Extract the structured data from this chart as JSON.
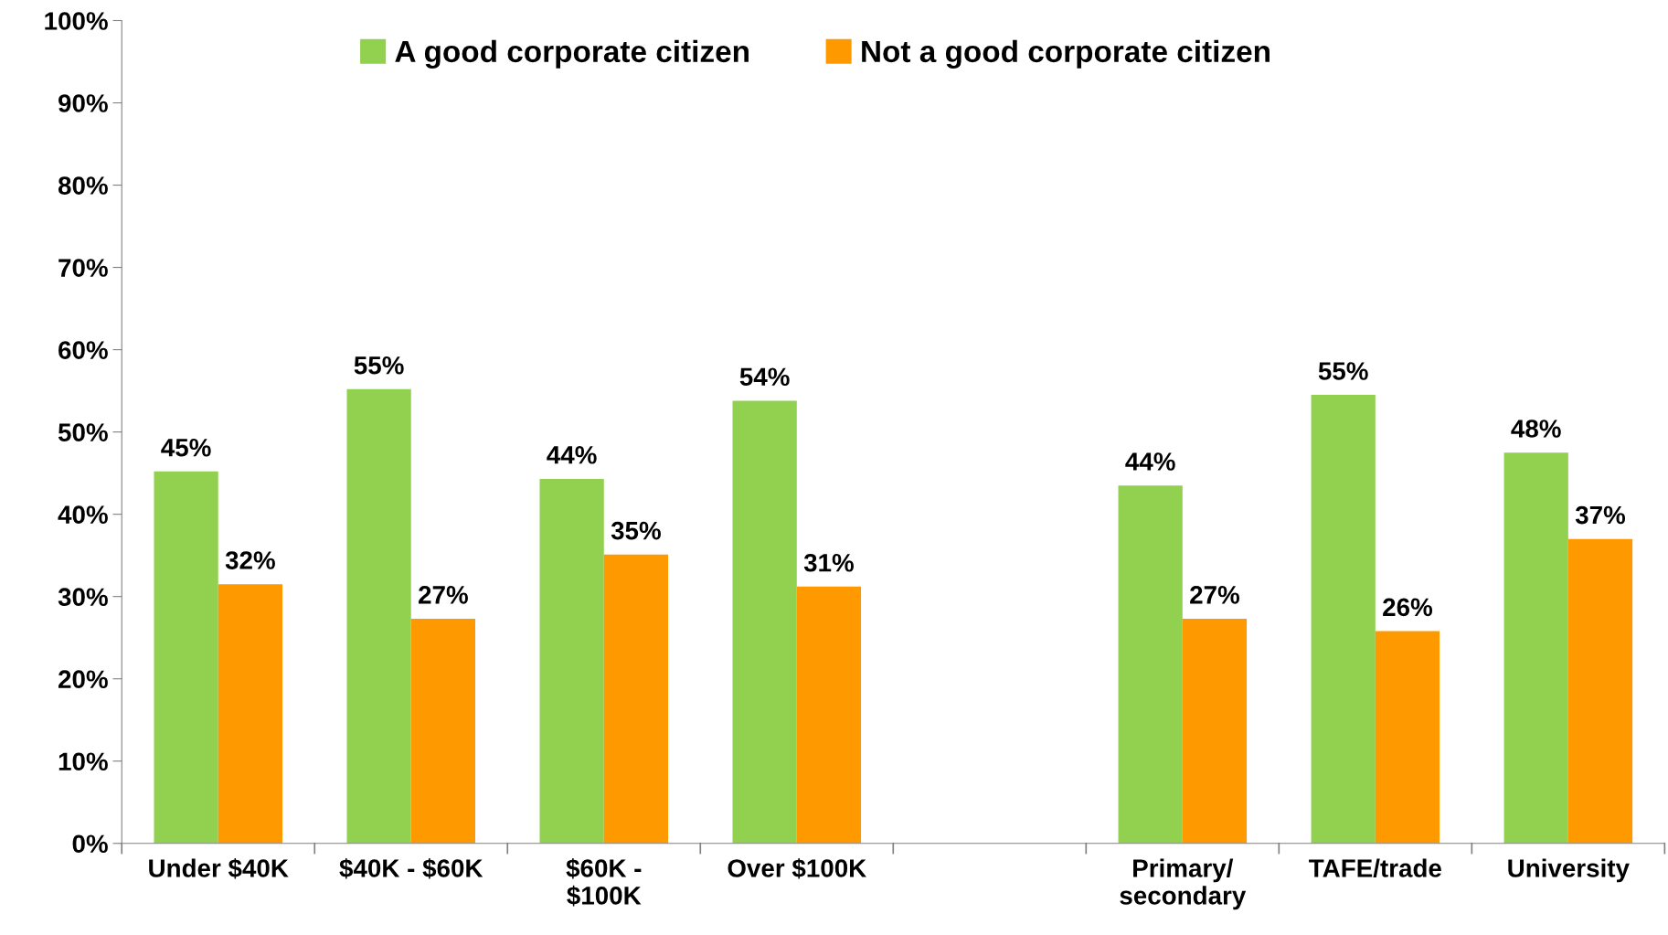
{
  "chart_data": {
    "type": "bar",
    "categories": [
      "Under $40K",
      "$40K - $60K",
      "$60K -\n$100K",
      "Over $100K",
      null,
      "Primary/\nsecondary",
      "TAFE/trade",
      "University"
    ],
    "series": [
      {
        "name": "A good corporate citizen",
        "color": "#92d050",
        "values": [
          45.2,
          55.2,
          44.3,
          53.8,
          null,
          43.5,
          54.5,
          47.5
        ],
        "value_labels": [
          "45%",
          "55%",
          "44%",
          "54%",
          null,
          "44%",
          "55%",
          "48%"
        ]
      },
      {
        "name": "Not a good corporate citizen",
        "color": "#ff9900",
        "values": [
          31.5,
          27.3,
          35.1,
          31.2,
          null,
          27.3,
          25.8,
          37.0
        ],
        "value_labels": [
          "32%",
          "27%",
          "35%",
          "31%",
          null,
          "27%",
          "26%",
          "37%"
        ]
      }
    ],
    "ylim": [
      0,
      100
    ],
    "yticks": [
      {
        "value": 0,
        "label": "0%"
      },
      {
        "value": 10,
        "label": "10%"
      },
      {
        "value": 20,
        "label": "20%"
      },
      {
        "value": 30,
        "label": "30%"
      },
      {
        "value": 40,
        "label": "40%"
      },
      {
        "value": 50,
        "label": "50%"
      },
      {
        "value": 60,
        "label": "60%"
      },
      {
        "value": 70,
        "label": "70%"
      },
      {
        "value": 80,
        "label": "80%"
      },
      {
        "value": 90,
        "label": "90%"
      },
      {
        "value": 100,
        "label": "100%"
      }
    ],
    "grid": false,
    "legend": "top"
  }
}
